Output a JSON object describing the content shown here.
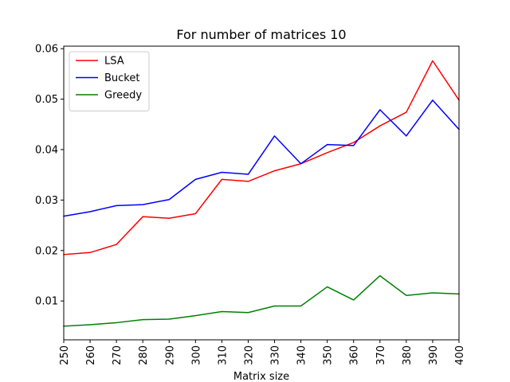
{
  "chart_data": {
    "type": "line",
    "title": "For number of matrices 10",
    "xlabel": "Matrix size",
    "ylabel": "",
    "x": [
      250,
      260,
      270,
      280,
      290,
      300,
      310,
      320,
      330,
      340,
      350,
      360,
      370,
      380,
      390,
      400
    ],
    "xlim": [
      250,
      400
    ],
    "ylim": [
      0.0023,
      0.0605
    ],
    "yticks": [
      0.01,
      0.02,
      0.03,
      0.04,
      0.05,
      0.06
    ],
    "ytick_labels": [
      "0.01",
      "0.02",
      "0.03",
      "0.04",
      "0.05",
      "0.06"
    ],
    "grid": false,
    "legend_position": "top-left",
    "series": [
      {
        "name": "LSA",
        "color": "#ff0000",
        "values": [
          0.0192,
          0.0196,
          0.0212,
          0.0267,
          0.0264,
          0.0273,
          0.0341,
          0.0337,
          0.0358,
          0.0372,
          0.0394,
          0.0414,
          0.0447,
          0.0474,
          0.0576,
          0.0498
        ]
      },
      {
        "name": "Bucket",
        "color": "#0000ff",
        "values": [
          0.0268,
          0.0277,
          0.0289,
          0.0291,
          0.0301,
          0.0341,
          0.0355,
          0.0351,
          0.0427,
          0.0372,
          0.041,
          0.0408,
          0.0479,
          0.0427,
          0.0498,
          0.044
        ]
      },
      {
        "name": "Greedy",
        "color": "#008000",
        "values": [
          0.005,
          0.0053,
          0.0057,
          0.0063,
          0.0064,
          0.0071,
          0.0079,
          0.0077,
          0.009,
          0.009,
          0.0128,
          0.0102,
          0.015,
          0.0111,
          0.0116,
          0.0114
        ]
      }
    ]
  }
}
